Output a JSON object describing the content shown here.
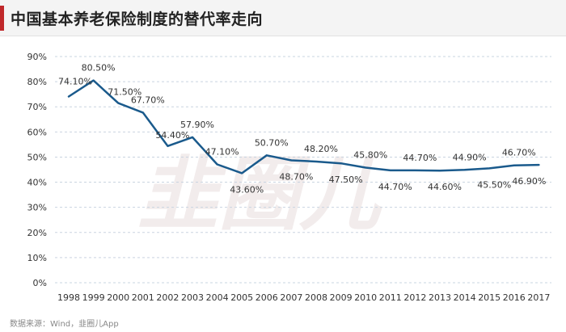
{
  "header": {
    "title": "中国基本养老保险制度的替代率走向"
  },
  "source": "数据来源：Wind，韭圈儿App",
  "watermark": "韭圈儿",
  "chart_data": {
    "type": "line",
    "title": "中国基本养老保险制度的替代率走向",
    "xlabel": "",
    "ylabel": "",
    "x": [
      "1998",
      "1999",
      "2000",
      "2001",
      "2002",
      "2003",
      "2004",
      "2005",
      "2006",
      "2007",
      "2008",
      "2009",
      "2010",
      "2011",
      "2012",
      "2013",
      "2014",
      "2015",
      "2016",
      "2017"
    ],
    "values": [
      74.1,
      80.5,
      71.5,
      67.7,
      54.4,
      57.9,
      47.1,
      43.6,
      50.7,
      48.7,
      48.2,
      47.5,
      45.8,
      44.7,
      44.7,
      44.6,
      44.9,
      45.5,
      46.7,
      46.9
    ],
    "data_labels": [
      "74.10%",
      "80.50%",
      "71.50%",
      "67.70%",
      "54.40%",
      "57.90%",
      "47.10%",
      "43.60%",
      "50.70%",
      "48.70%",
      "48.20%",
      "47.50%",
      "45.80%",
      "44.70%",
      "44.70%",
      "44.60%",
      "44.90%",
      "45.50%",
      "46.70%",
      "46.90%"
    ],
    "ylim": [
      0,
      90
    ],
    "yticks": [
      0,
      10,
      20,
      30,
      40,
      50,
      60,
      70,
      80,
      90
    ],
    "ytick_labels": [
      "0%",
      "10%",
      "20%",
      "30%",
      "40%",
      "50%",
      "60%",
      "70%",
      "80%",
      "90%"
    ],
    "grid": true,
    "legend": "none",
    "colors": {
      "line": "#1a5a8c",
      "grid": "#c9d4e0",
      "accent": "#c0282a"
    }
  }
}
